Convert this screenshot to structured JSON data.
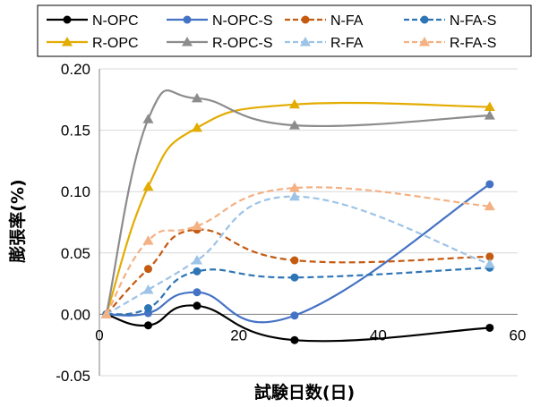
{
  "chart_data": {
    "type": "line",
    "xlabel": "試験日数(日)",
    "ylabel": "膨張率(%)",
    "xlim": [
      0,
      60
    ],
    "ylim": [
      -0.05,
      0.2
    ],
    "xticks": [
      "0",
      "20",
      "40",
      "60"
    ],
    "xtick_values": [
      0,
      20,
      40,
      60
    ],
    "yticks": [
      "-0.05",
      "0.00",
      "0.05",
      "0.10",
      "0.15",
      "0.20"
    ],
    "ytick_values": [
      -0.05,
      0.0,
      0.05,
      0.1,
      0.15,
      0.2
    ],
    "grid": "horizontal",
    "legend": "top",
    "series": [
      {
        "name": "N-OPC",
        "color": "#000000",
        "style": "solid",
        "marker": "circle",
        "x": [
          1,
          7,
          14,
          28,
          56
        ],
        "y": [
          0.0,
          -0.009,
          0.007,
          -0.021,
          -0.011
        ]
      },
      {
        "name": "N-OPC-S",
        "color": "#4472C4",
        "style": "solid",
        "marker": "circle",
        "x": [
          1,
          7,
          14,
          28,
          56
        ],
        "y": [
          0.0,
          0.001,
          0.018,
          -0.001,
          0.106
        ]
      },
      {
        "name": "N-FA",
        "color": "#C55A11",
        "style": "dashed",
        "marker": "circle",
        "x": [
          1,
          7,
          14,
          28,
          56
        ],
        "y": [
          0.0,
          0.037,
          0.069,
          0.044,
          0.047
        ]
      },
      {
        "name": "N-FA-S",
        "color": "#2E75B6",
        "style": "dashed",
        "marker": "circle",
        "x": [
          1,
          7,
          14,
          28,
          56
        ],
        "y": [
          0.0,
          0.005,
          0.035,
          0.03,
          0.038
        ]
      },
      {
        "name": "R-OPC",
        "color": "#E3AC00",
        "style": "solid",
        "marker": "triangle",
        "x": [
          1,
          7,
          14,
          28,
          56
        ],
        "y": [
          0.0,
          0.104,
          0.152,
          0.171,
          0.169
        ]
      },
      {
        "name": "R-OPC-S",
        "color": "#8C8C8C",
        "style": "solid",
        "marker": "triangle",
        "x": [
          1,
          7,
          14,
          28,
          56
        ],
        "y": [
          0.0,
          0.159,
          0.176,
          0.154,
          0.162
        ]
      },
      {
        "name": "R-FA",
        "color": "#9DC3E6",
        "style": "dashed",
        "marker": "triangle",
        "x": [
          1,
          7,
          14,
          28,
          56
        ],
        "y": [
          0.0,
          0.02,
          0.044,
          0.096,
          0.041
        ]
      },
      {
        "name": "R-FA-S",
        "color": "#F4B183",
        "style": "dashed",
        "marker": "triangle",
        "x": [
          1,
          7,
          14,
          28,
          56
        ],
        "y": [
          0.0,
          0.06,
          0.072,
          0.103,
          0.088
        ]
      }
    ]
  }
}
